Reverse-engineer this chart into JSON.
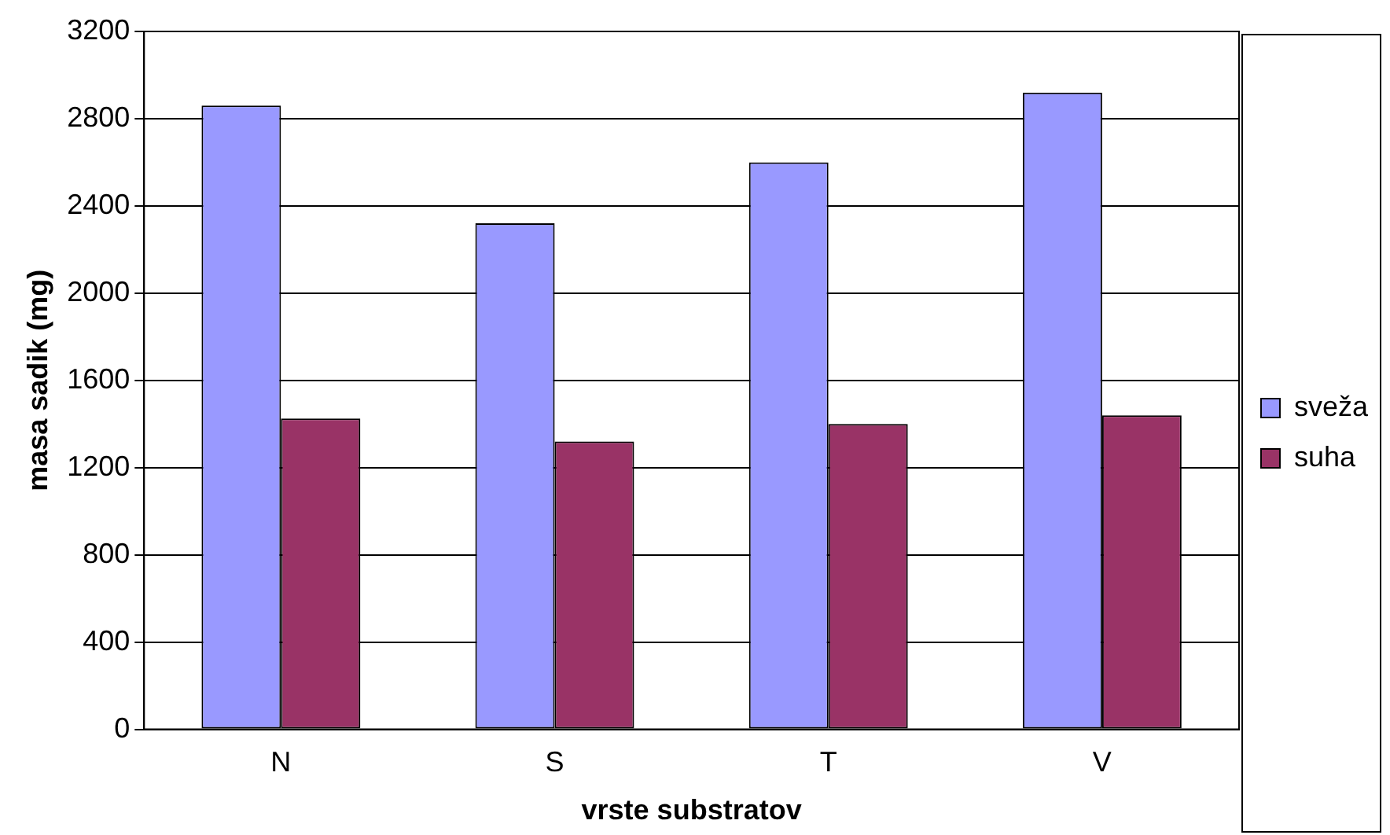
{
  "chart_data": {
    "type": "bar",
    "xlabel": "vrste substratov",
    "ylabel": "masa sadik (mg)",
    "categories": [
      "N",
      "S",
      "T",
      "V"
    ],
    "series": [
      {
        "name": "sveža",
        "color": "#9999ff",
        "values": [
          2860,
          2320,
          2600,
          2920
        ]
      },
      {
        "name": "suha",
        "color": "#993366",
        "values": [
          1425,
          1320,
          1400,
          1440
        ]
      }
    ],
    "ylim": [
      0,
      3200
    ],
    "yticks": [
      0,
      400,
      800,
      1200,
      1600,
      2000,
      2400,
      2800,
      3200
    ],
    "grid": "y",
    "legend": "right"
  }
}
